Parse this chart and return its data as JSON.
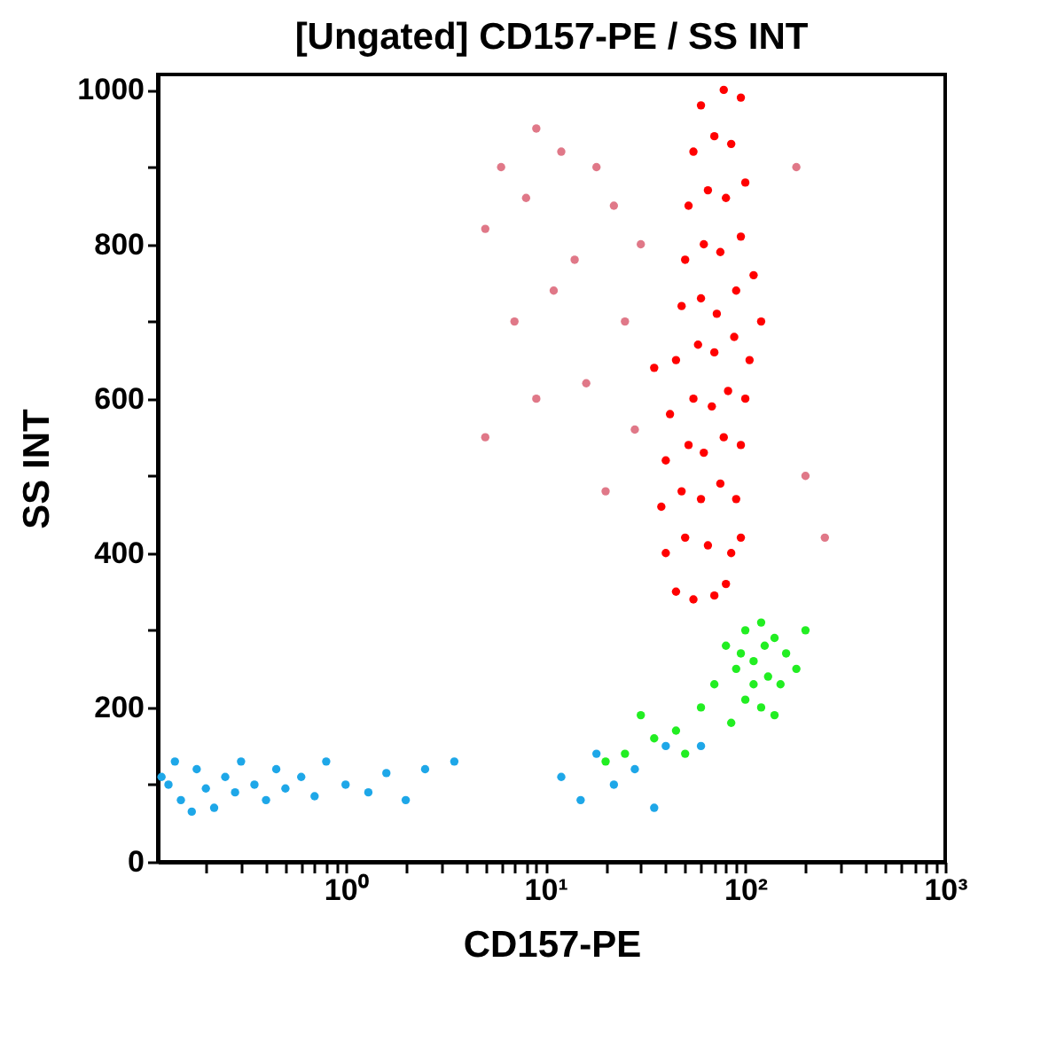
{
  "chart_data": {
    "type": "scatter",
    "title": "[Ungated] CD157-PE / SS INT",
    "xlabel": "CD157-PE",
    "ylabel": "SS INT",
    "log": "x",
    "grid": false,
    "marker": "circle",
    "xlim": [
      0.115,
      1000
    ],
    "ylim": [
      0,
      1020
    ],
    "xticks": [
      {
        "value": 0.2,
        "label": null
      },
      {
        "value": 0.3,
        "label": null
      },
      {
        "value": 0.4,
        "label": null
      },
      {
        "value": 0.5,
        "label": null
      },
      {
        "value": 0.6,
        "label": null
      },
      {
        "value": 0.7,
        "label": null
      },
      {
        "value": 0.8,
        "label": null
      },
      {
        "value": 0.9,
        "label": null
      },
      {
        "value": 1,
        "label": "10⁰"
      },
      {
        "value": 2,
        "label": null
      },
      {
        "value": 3,
        "label": null
      },
      {
        "value": 4,
        "label": null
      },
      {
        "value": 5,
        "label": null
      },
      {
        "value": 6,
        "label": null
      },
      {
        "value": 7,
        "label": null
      },
      {
        "value": 8,
        "label": null
      },
      {
        "value": 9,
        "label": null
      },
      {
        "value": 10,
        "label": "10¹"
      },
      {
        "value": 20,
        "label": null
      },
      {
        "value": 30,
        "label": null
      },
      {
        "value": 40,
        "label": null
      },
      {
        "value": 50,
        "label": null
      },
      {
        "value": 60,
        "label": null
      },
      {
        "value": 70,
        "label": null
      },
      {
        "value": 80,
        "label": null
      },
      {
        "value": 90,
        "label": null
      },
      {
        "value": 100,
        "label": "10²"
      },
      {
        "value": 200,
        "label": null
      },
      {
        "value": 300,
        "label": null
      },
      {
        "value": 400,
        "label": null
      },
      {
        "value": 500,
        "label": null
      },
      {
        "value": 600,
        "label": null
      },
      {
        "value": 700,
        "label": null
      },
      {
        "value": 800,
        "label": null
      },
      {
        "value": 900,
        "label": null
      },
      {
        "value": 1000,
        "label": "10³"
      }
    ],
    "yticks": [
      0,
      {
        "value": 100,
        "label": null
      },
      200,
      {
        "value": 300,
        "label": null
      },
      400,
      {
        "value": 500,
        "label": null
      },
      600,
      {
        "value": 700,
        "label": null
      },
      800,
      {
        "value": 900,
        "label": null
      },
      1000
    ],
    "series": [
      {
        "color": "#ff0000",
        "x": [
          45,
          55,
          70,
          80,
          40,
          50,
          65,
          85,
          95,
          38,
          48,
          60,
          75,
          90,
          40,
          52,
          62,
          78,
          95,
          42,
          55,
          68,
          82,
          100,
          45,
          58,
          70,
          88,
          105,
          48,
          60,
          72,
          90,
          50,
          62,
          75,
          95,
          52,
          65,
          80,
          100,
          55,
          70,
          85,
          60,
          78,
          95,
          110,
          35,
          120
        ],
        "values": [
          350,
          340,
          345,
          360,
          400,
          420,
          410,
          400,
          420,
          460,
          480,
          470,
          490,
          470,
          520,
          540,
          530,
          550,
          540,
          580,
          600,
          590,
          610,
          600,
          650,
          670,
          660,
          680,
          650,
          720,
          730,
          710,
          740,
          780,
          800,
          790,
          810,
          850,
          870,
          860,
          880,
          920,
          940,
          930,
          980,
          1000,
          990,
          760,
          640,
          700
        ]
      },
      {
        "color": "#e07888",
        "x": [
          6,
          9,
          12,
          5,
          8,
          14,
          18,
          7,
          11,
          16,
          5,
          9,
          22,
          25,
          30,
          28,
          20,
          180,
          200,
          250
        ],
        "values": [
          900,
          950,
          920,
          820,
          860,
          780,
          900,
          700,
          740,
          620,
          550,
          600,
          850,
          700,
          800,
          560,
          480,
          900,
          500,
          420
        ]
      },
      {
        "color": "#22ee22",
        "x": [
          80,
          100,
          120,
          140,
          160,
          90,
          110,
          130,
          150,
          100,
          120,
          140,
          110,
          95,
          125,
          180,
          70,
          60,
          45,
          35,
          25,
          20,
          50,
          30,
          200,
          85
        ],
        "values": [
          280,
          300,
          310,
          290,
          270,
          250,
          260,
          240,
          230,
          210,
          200,
          190,
          230,
          270,
          280,
          250,
          230,
          200,
          170,
          160,
          140,
          130,
          140,
          190,
          300,
          180
        ]
      },
      {
        "color": "#1ea7e8",
        "x": [
          0.13,
          0.15,
          0.18,
          0.2,
          0.22,
          0.25,
          0.28,
          0.3,
          0.35,
          0.4,
          0.45,
          0.5,
          0.6,
          0.7,
          0.8,
          1.0,
          1.3,
          1.6,
          2,
          2.5,
          3.5,
          12,
          15,
          18,
          22,
          28,
          35,
          40,
          60,
          0.14,
          0.17,
          0.12
        ],
        "values": [
          100,
          80,
          120,
          95,
          70,
          110,
          90,
          130,
          100,
          80,
          120,
          95,
          110,
          85,
          130,
          100,
          90,
          115,
          80,
          120,
          130,
          110,
          80,
          140,
          100,
          120,
          70,
          150,
          150,
          130,
          65,
          110
        ]
      }
    ]
  }
}
